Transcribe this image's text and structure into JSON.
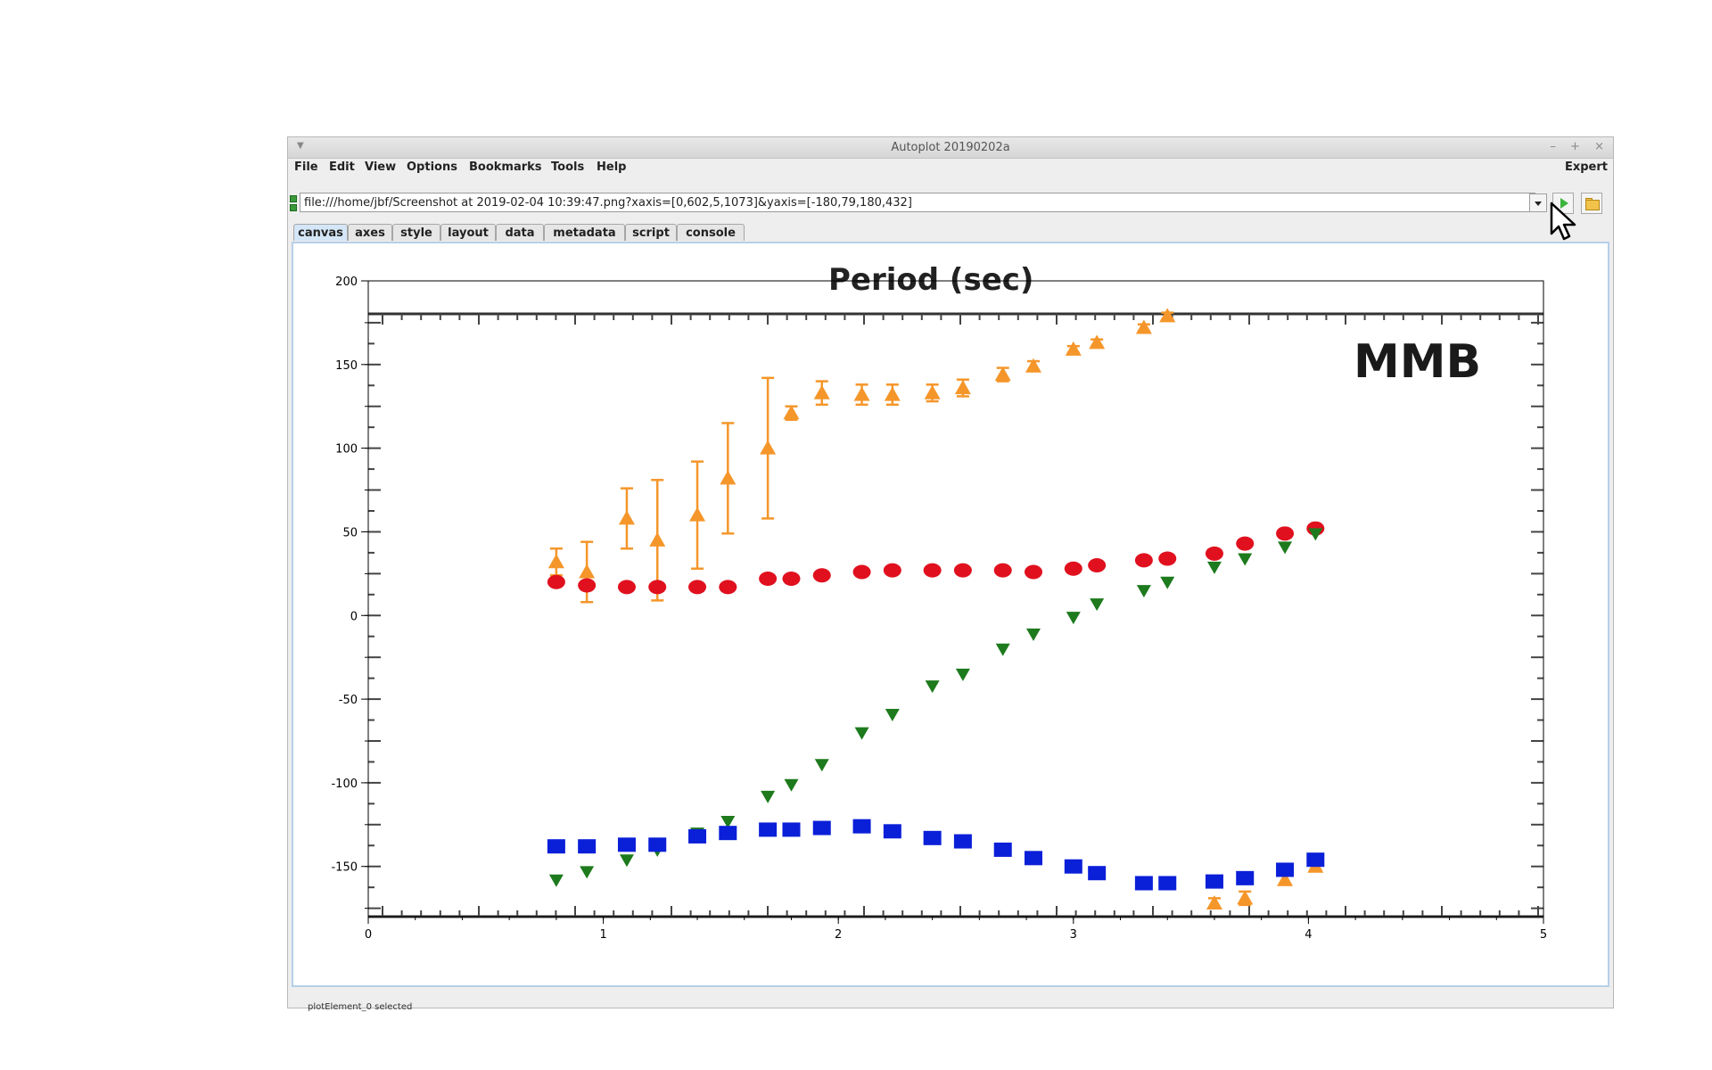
{
  "window": {
    "title": "Autoplot 20190202a",
    "controls": [
      "–",
      "+",
      "×"
    ]
  },
  "menubar": {
    "items": [
      "File",
      "Edit",
      "View",
      "Options",
      "Bookmarks",
      "Tools",
      "Help"
    ],
    "right_label": "Expert"
  },
  "url": {
    "value": "file:///home/jbf/Screenshot at 2019-02-04 10:39:47.png?xaxis=[0,602,5,1073]&yaxis=[-180,79,180,432]"
  },
  "tabs": [
    "canvas",
    "axes",
    "style",
    "layout",
    "data",
    "metadata",
    "script",
    "console"
  ],
  "active_tab": "canvas",
  "status": "plotElement_0 selected",
  "image_text": {
    "label": "MMB",
    "header_fragment": "Period (sec)"
  },
  "colors": {
    "orange": "#f5962a",
    "red": "#e0101e",
    "green": "#1d7a1d",
    "blue": "#0a1fd8",
    "tab_active": "#d4e6f7"
  },
  "chart_data": {
    "type": "scatter",
    "xlim": [
      0,
      5
    ],
    "ylim": [
      -180,
      200
    ],
    "x_ticks": [
      "0",
      "1",
      "2",
      "3",
      "4",
      "5"
    ],
    "y_ticks": [
      "200",
      "150",
      "100",
      "50",
      "0",
      "-50",
      "-100",
      "-150"
    ],
    "series": [
      {
        "marker": "triangle-up",
        "color": "#f5962a",
        "points": [
          {
            "x": 0.8,
            "y": 32,
            "err": 8
          },
          {
            "x": 0.93,
            "y": 26,
            "err": 18
          },
          {
            "x": 1.1,
            "y": 58,
            "err": 18
          },
          {
            "x": 1.23,
            "y": 45,
            "err": 36
          },
          {
            "x": 1.4,
            "y": 60,
            "err": 32
          },
          {
            "x": 1.53,
            "y": 82,
            "err": 33
          },
          {
            "x": 1.7,
            "y": 100,
            "err": 42
          },
          {
            "x": 1.8,
            "y": 121,
            "err": 4
          },
          {
            "x": 1.93,
            "y": 133,
            "err": 7
          },
          {
            "x": 2.1,
            "y": 132,
            "err": 6
          },
          {
            "x": 2.23,
            "y": 132,
            "err": 6
          },
          {
            "x": 2.4,
            "y": 133,
            "err": 5
          },
          {
            "x": 2.53,
            "y": 136,
            "err": 5
          },
          {
            "x": 2.7,
            "y": 144,
            "err": 4
          },
          {
            "x": 2.83,
            "y": 149,
            "err": 3
          },
          {
            "x": 3.0,
            "y": 159,
            "err": 2
          },
          {
            "x": 3.1,
            "y": 163,
            "err": 2
          },
          {
            "x": 3.3,
            "y": 172,
            "err": 2
          },
          {
            "x": 3.4,
            "y": 179,
            "err": 2
          },
          {
            "x": 3.6,
            "y": -172,
            "err": 3
          },
          {
            "x": 3.73,
            "y": -169,
            "err": 4
          },
          {
            "x": 3.9,
            "y": -158,
            "err": 3
          },
          {
            "x": 4.03,
            "y": -150,
            "err": 2
          }
        ]
      },
      {
        "marker": "circle",
        "color": "#e0101e",
        "points": [
          {
            "x": 0.8,
            "y": 20
          },
          {
            "x": 0.93,
            "y": 18
          },
          {
            "x": 1.1,
            "y": 17
          },
          {
            "x": 1.23,
            "y": 17
          },
          {
            "x": 1.4,
            "y": 17
          },
          {
            "x": 1.53,
            "y": 17
          },
          {
            "x": 1.7,
            "y": 22
          },
          {
            "x": 1.8,
            "y": 22
          },
          {
            "x": 1.93,
            "y": 24
          },
          {
            "x": 2.1,
            "y": 26
          },
          {
            "x": 2.23,
            "y": 27
          },
          {
            "x": 2.4,
            "y": 27
          },
          {
            "x": 2.53,
            "y": 27
          },
          {
            "x": 2.7,
            "y": 27
          },
          {
            "x": 2.83,
            "y": 26
          },
          {
            "x": 3.0,
            "y": 28
          },
          {
            "x": 3.1,
            "y": 30
          },
          {
            "x": 3.3,
            "y": 33
          },
          {
            "x": 3.4,
            "y": 34
          },
          {
            "x": 3.6,
            "y": 37
          },
          {
            "x": 3.73,
            "y": 43
          },
          {
            "x": 3.9,
            "y": 49
          },
          {
            "x": 4.03,
            "y": 52
          }
        ]
      },
      {
        "marker": "triangle-down",
        "color": "#1d7a1d",
        "points": [
          {
            "x": 0.8,
            "y": -158
          },
          {
            "x": 0.93,
            "y": -153
          },
          {
            "x": 1.1,
            "y": -146
          },
          {
            "x": 1.23,
            "y": -140
          },
          {
            "x": 1.4,
            "y": -130
          },
          {
            "x": 1.53,
            "y": -123
          },
          {
            "x": 1.7,
            "y": -108
          },
          {
            "x": 1.8,
            "y": -101
          },
          {
            "x": 1.93,
            "y": -89
          },
          {
            "x": 2.1,
            "y": -70
          },
          {
            "x": 2.23,
            "y": -59
          },
          {
            "x": 2.4,
            "y": -42
          },
          {
            "x": 2.53,
            "y": -35
          },
          {
            "x": 2.7,
            "y": -20
          },
          {
            "x": 2.83,
            "y": -11
          },
          {
            "x": 3.0,
            "y": -1
          },
          {
            "x": 3.1,
            "y": 7
          },
          {
            "x": 3.3,
            "y": 15
          },
          {
            "x": 3.4,
            "y": 20
          },
          {
            "x": 3.6,
            "y": 29
          },
          {
            "x": 3.73,
            "y": 34
          },
          {
            "x": 3.9,
            "y": 41
          },
          {
            "x": 4.03,
            "y": 49
          }
        ]
      },
      {
        "marker": "square",
        "color": "#0a1fd8",
        "points": [
          {
            "x": 0.8,
            "y": -138
          },
          {
            "x": 0.93,
            "y": -138
          },
          {
            "x": 1.1,
            "y": -137
          },
          {
            "x": 1.23,
            "y": -137
          },
          {
            "x": 1.4,
            "y": -132
          },
          {
            "x": 1.53,
            "y": -130
          },
          {
            "x": 1.7,
            "y": -128
          },
          {
            "x": 1.8,
            "y": -128
          },
          {
            "x": 1.93,
            "y": -127
          },
          {
            "x": 2.1,
            "y": -126
          },
          {
            "x": 2.23,
            "y": -129
          },
          {
            "x": 2.4,
            "y": -133
          },
          {
            "x": 2.53,
            "y": -135
          },
          {
            "x": 2.7,
            "y": -140
          },
          {
            "x": 2.83,
            "y": -145
          },
          {
            "x": 3.0,
            "y": -150
          },
          {
            "x": 3.1,
            "y": -154
          },
          {
            "x": 3.3,
            "y": -160
          },
          {
            "x": 3.4,
            "y": -160
          },
          {
            "x": 3.6,
            "y": -159
          },
          {
            "x": 3.73,
            "y": -157
          },
          {
            "x": 3.9,
            "y": -152
          },
          {
            "x": 4.03,
            "y": -146
          }
        ]
      }
    ]
  }
}
